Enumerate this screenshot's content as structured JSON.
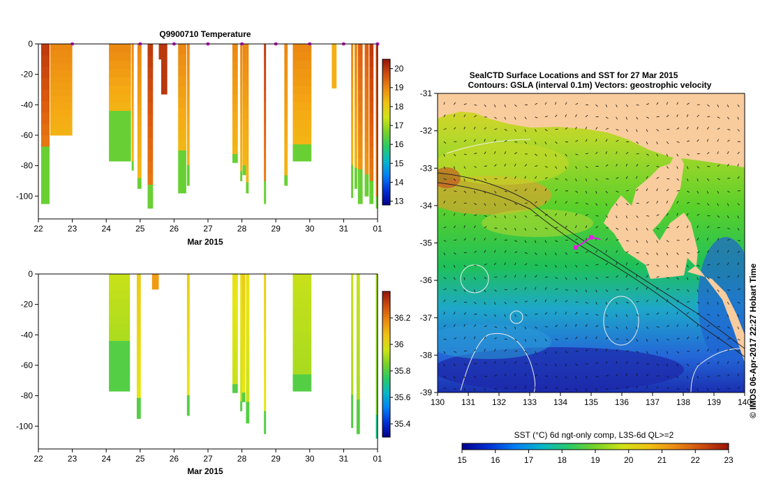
{
  "chart_data": [
    {
      "type": "heatmap",
      "title": "Q9900710  Temperature",
      "xlabel": "Mar 2015",
      "x_ticks": [
        "22",
        "23",
        "24",
        "25",
        "26",
        "27",
        "28",
        "29",
        "30",
        "31",
        "01"
      ],
      "y_ticks": [
        "0",
        "-20",
        "-40",
        "-60",
        "-80",
        "-100"
      ],
      "ylim": [
        -115,
        0
      ],
      "colorbar_ticks": [
        "13",
        "14",
        "15",
        "16",
        "17",
        "18",
        "19",
        "20"
      ],
      "colorbar_range": [
        12.8,
        20.5
      ],
      "profile_markers_day": [
        23.0,
        25.0,
        26.0,
        27.0,
        28.0,
        29.0,
        30.0,
        31.0,
        32.0
      ],
      "profiles": [
        {
          "day": 22.08,
          "width": 0.25,
          "depth": 105,
          "surface": 20.0,
          "thermocline": 70,
          "deep": 16.5
        },
        {
          "day": 22.35,
          "width": 0.65,
          "depth": 60,
          "surface": 19.0,
          "thermocline": 58,
          "deep": 16.8
        },
        {
          "day": 24.08,
          "width": 0.65,
          "depth": 77,
          "surface": 19.0,
          "thermocline": 45,
          "deep": 16.5
        },
        {
          "day": 24.75,
          "width": 0.06,
          "depth": 83,
          "surface": 19.0,
          "thermocline": 76,
          "deep": 16.5
        },
        {
          "day": 24.92,
          "width": 0.12,
          "depth": 95,
          "surface": 19.0,
          "thermocline": 85,
          "deep": 16.5
        },
        {
          "day": 25.22,
          "width": 0.16,
          "depth": 108,
          "surface": 20.0,
          "thermocline": 95,
          "deep": 16.5
        },
        {
          "day": 25.55,
          "width": 0.12,
          "depth": 10,
          "surface": 20.0,
          "thermocline": 10,
          "deep": 20.0
        },
        {
          "day": 25.62,
          "width": 0.18,
          "depth": 33,
          "surface": 20.0,
          "thermocline": 33,
          "deep": 20.0
        },
        {
          "day": 26.12,
          "width": 0.24,
          "depth": 98,
          "surface": 19.0,
          "thermocline": 68,
          "deep": 16.5
        },
        {
          "day": 26.38,
          "width": 0.08,
          "depth": 93,
          "surface": 19.0,
          "thermocline": 80,
          "deep": 16.5
        },
        {
          "day": 27.72,
          "width": 0.16,
          "depth": 78,
          "surface": 19.0,
          "thermocline": 72,
          "deep": 16.5
        },
        {
          "day": 27.95,
          "width": 0.06,
          "depth": 90,
          "surface": 19.0,
          "thermocline": 82,
          "deep": 16.5
        },
        {
          "day": 28.02,
          "width": 0.1,
          "depth": 86,
          "surface": 19.0,
          "thermocline": 78,
          "deep": 16.5
        },
        {
          "day": 28.12,
          "width": 0.08,
          "depth": 98,
          "surface": 19.0,
          "thermocline": 88,
          "deep": 16.5
        },
        {
          "day": 28.65,
          "width": 0.06,
          "depth": 105,
          "surface": 20.0,
          "thermocline": 90,
          "deep": 16.5
        },
        {
          "day": 29.25,
          "width": 0.1,
          "depth": 93,
          "surface": 19.0,
          "thermocline": 88,
          "deep": 16.5
        },
        {
          "day": 29.5,
          "width": 0.55,
          "depth": 77,
          "surface": 19.0,
          "thermocline": 65,
          "deep": 16.5
        },
        {
          "day": 30.65,
          "width": 0.14,
          "depth": 29,
          "surface": 18.5,
          "thermocline": 29,
          "deep": 18.5
        },
        {
          "day": 31.22,
          "width": 0.06,
          "depth": 101,
          "surface": 19.0,
          "thermocline": 76,
          "deep": 16.5
        },
        {
          "day": 31.32,
          "width": 0.08,
          "depth": 95,
          "surface": 19.0,
          "thermocline": 82,
          "deep": 16.5
        },
        {
          "day": 31.42,
          "width": 0.14,
          "depth": 105,
          "surface": 19.5,
          "thermocline": 85,
          "deep": 16.5
        },
        {
          "day": 31.62,
          "width": 0.12,
          "depth": 100,
          "surface": 19.5,
          "thermocline": 88,
          "deep": 16.5
        },
        {
          "day": 31.76,
          "width": 0.12,
          "depth": 105,
          "surface": 20.0,
          "thermocline": 92,
          "deep": 16.5
        },
        {
          "day": 31.95,
          "width": 0.06,
          "depth": 108,
          "surface": 20.0,
          "thermocline": 98,
          "deep": 16.5
        }
      ]
    },
    {
      "type": "heatmap",
      "xlabel": "Mar 2015",
      "x_ticks": [
        "22",
        "23",
        "24",
        "25",
        "26",
        "27",
        "28",
        "29",
        "30",
        "31",
        "01"
      ],
      "y_ticks": [
        "0",
        "-20",
        "-40",
        "-60",
        "-80",
        "-100"
      ],
      "ylim": [
        -115,
        0
      ],
      "colorbar_ticks": [
        "35.4",
        "35.6",
        "35.8",
        "36",
        "36.2"
      ],
      "colorbar_range": [
        35.3,
        36.4
      ],
      "profiles": [
        {
          "day": 24.08,
          "width": 0.62,
          "depth": 77,
          "surface": 35.95,
          "thermocline": 45,
          "deep": 35.8
        },
        {
          "day": 24.9,
          "width": 0.12,
          "depth": 95,
          "surface": 36.05,
          "thermocline": 82,
          "deep": 35.8
        },
        {
          "day": 25.35,
          "width": 0.2,
          "depth": 10,
          "surface": 36.15,
          "thermocline": 10,
          "deep": 36.15
        },
        {
          "day": 26.38,
          "width": 0.08,
          "depth": 93,
          "surface": 36.05,
          "thermocline": 78,
          "deep": 35.8
        },
        {
          "day": 27.72,
          "width": 0.16,
          "depth": 78,
          "surface": 36.0,
          "thermocline": 72,
          "deep": 35.8
        },
        {
          "day": 27.95,
          "width": 0.06,
          "depth": 90,
          "surface": 36.0,
          "thermocline": 82,
          "deep": 35.8
        },
        {
          "day": 28.0,
          "width": 0.1,
          "depth": 84,
          "surface": 36.05,
          "thermocline": 76,
          "deep": 35.8
        },
        {
          "day": 28.12,
          "width": 0.1,
          "depth": 98,
          "surface": 36.0,
          "thermocline": 86,
          "deep": 35.8
        },
        {
          "day": 28.65,
          "width": 0.06,
          "depth": 105,
          "surface": 36.05,
          "thermocline": 88,
          "deep": 35.8
        },
        {
          "day": 29.5,
          "width": 0.55,
          "depth": 77,
          "surface": 35.95,
          "thermocline": 65,
          "deep": 35.8
        },
        {
          "day": 31.22,
          "width": 0.06,
          "depth": 101,
          "surface": 35.95,
          "thermocline": 80,
          "deep": 35.8
        },
        {
          "day": 31.38,
          "width": 0.1,
          "depth": 105,
          "surface": 35.95,
          "thermocline": 86,
          "deep": 35.8
        },
        {
          "day": 31.95,
          "width": 0.06,
          "depth": 108,
          "surface": 35.9,
          "thermocline": 95,
          "deep": 35.7
        }
      ]
    },
    {
      "type": "heatmap",
      "title": "SealCTD Surface Locations and SST for 27 Mar 2015",
      "subtitle": "Contours: GSLA (interval 0.1m) Vectors: geostrophic velocity",
      "x_ticks": [
        "130",
        "131",
        "132",
        "133",
        "134",
        "135",
        "136",
        "137",
        "138",
        "139",
        "140"
      ],
      "y_ticks": [
        "-31",
        "-32",
        "-33",
        "-34",
        "-35",
        "-36",
        "-37",
        "-38",
        "-39"
      ],
      "xlim": [
        130,
        140
      ],
      "ylim": [
        -39,
        -31
      ],
      "side_label": "© IMOS 06-Apr-2017 22:27 Hobart Time",
      "colorbar_label": "SST (°C) 6d ngt-only comp, L3S-6d QL>=2",
      "colorbar_ticks": [
        "15",
        "16",
        "17",
        "18",
        "19",
        "20",
        "21",
        "22",
        "23"
      ],
      "colorbar_range": [
        15,
        23
      ],
      "land_color": "#f9cc9d",
      "track_color": "#e020e0",
      "seal_track": [
        [
          134.5,
          -35.12
        ],
        [
          134.7,
          -35.02
        ],
        [
          135.0,
          -34.85
        ],
        [
          135.3,
          -34.9
        ]
      ]
    }
  ]
}
